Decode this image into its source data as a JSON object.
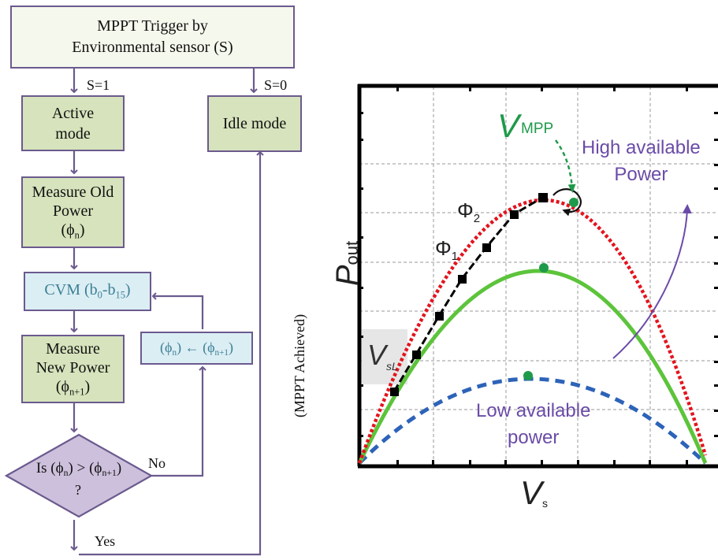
{
  "flowchart": {
    "trigger_line1": "MPPT Trigger by",
    "trigger_line2": "Environmental sensor (S)",
    "s1_label": "S=1",
    "s0_label": "S=0",
    "active_line1": "Active",
    "active_line2": "mode",
    "idle": "Idle mode",
    "measure_old_line1": "Measure Old",
    "measure_old_line2": "Power",
    "phi_symbol": "ϕ",
    "sub_n": "n",
    "sub_n1": "n+1",
    "cvm": "CVM (b",
    "cvm_sub0": "0",
    "cvm_mid": "-b",
    "cvm_sub15": "15",
    "cvm_end": ")",
    "update_arrow": "←",
    "measure_new_line1": "Measure",
    "measure_new_line2": "New Power",
    "decision_prefix": "Is (",
    "decision_mid": ") > (",
    "decision_suffix": ")",
    "decision_q": "?",
    "no_label": "No",
    "yes_label": "Yes",
    "mppt_achieved": "(MPPT Achieved)"
  },
  "graph": {
    "ylabel_main": "P",
    "ylabel_sub": "out",
    "xlabel_main": "V",
    "xlabel_sub": "s",
    "vmpp_main": "V",
    "vmpp_sub": "MPP",
    "phi_main": "Φ",
    "phi1_sub": "1",
    "phi2_sub": "2",
    "vsl_main": "V",
    "vsl_sub": "sL",
    "high_line1": "High available",
    "high_line2": "Power",
    "low_line1": "Low available",
    "low_line2": "power",
    "colors": {
      "high_curve": "#e3141e",
      "mid_curve": "#5cc43b",
      "low_curve": "#2d63b8",
      "annotation": "#6a4ba8",
      "vmpp": "#1f9a4a"
    }
  }
}
